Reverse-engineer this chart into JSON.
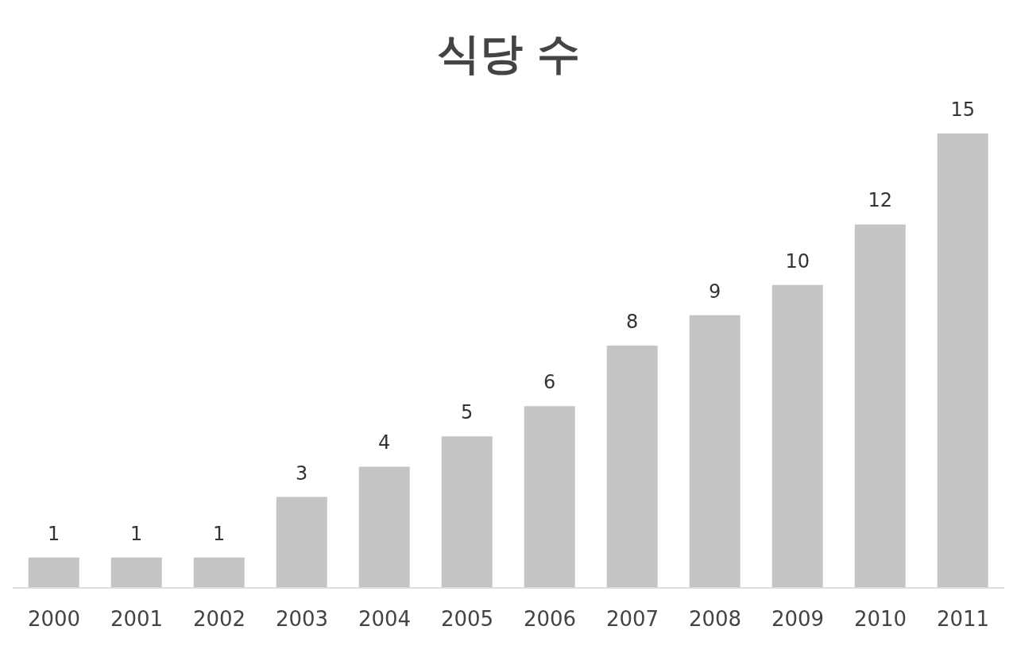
{
  "chart_data": {
    "type": "bar",
    "title": "식당 수",
    "categories": [
      "2000",
      "2001",
      "2002",
      "2003",
      "2004",
      "2005",
      "2006",
      "2007",
      "2008",
      "2009",
      "2010",
      "2011"
    ],
    "values": [
      1,
      1,
      1,
      3,
      4,
      5,
      6,
      8,
      9,
      10,
      12,
      15
    ],
    "color": "#c4c4c4",
    "data_labels": true
  }
}
